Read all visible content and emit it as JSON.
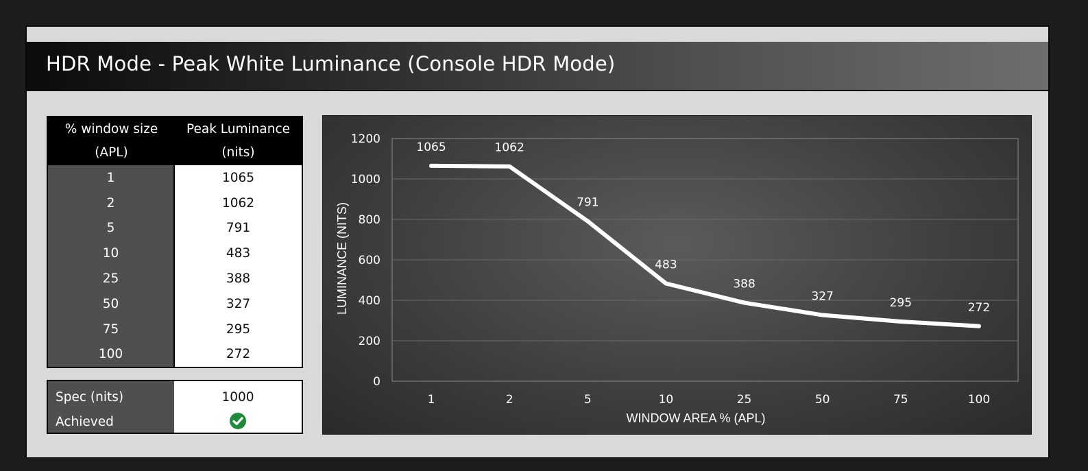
{
  "header": {
    "title": "HDR Mode - Peak White Luminance (Console HDR Mode)"
  },
  "table": {
    "col1_header_line1": "% window size",
    "col1_header_line2": "(APL)",
    "col2_header_line1": "Peak Luminance",
    "col2_header_line2": "(nits)",
    "rows": [
      {
        "window": "1",
        "luminance": "1065"
      },
      {
        "window": "2",
        "luminance": "1062"
      },
      {
        "window": "5",
        "luminance": "791"
      },
      {
        "window": "10",
        "luminance": "483"
      },
      {
        "window": "25",
        "luminance": "388"
      },
      {
        "window": "50",
        "luminance": "327"
      },
      {
        "window": "75",
        "luminance": "295"
      },
      {
        "window": "100",
        "luminance": "272"
      }
    ]
  },
  "spec": {
    "spec_label": "Spec (nits)",
    "spec_value": "1000",
    "achieved_label": "Achieved",
    "achieved_icon": "check-circle-icon",
    "achieved_color": "#1f8a3a"
  },
  "chart_data": {
    "type": "line",
    "categories": [
      "1",
      "2",
      "5",
      "10",
      "25",
      "50",
      "75",
      "100"
    ],
    "values": [
      1065,
      1062,
      791,
      483,
      388,
      327,
      295,
      272
    ],
    "data_labels": [
      "1065",
      "1062",
      "791",
      "483",
      "388",
      "327",
      "295",
      "272"
    ],
    "xlabel": "WINDOW AREA % (APL)",
    "ylabel": "LUMINANCE (NITS)",
    "ylim": [
      0,
      1200
    ],
    "yticks": [
      "0",
      "200",
      "400",
      "600",
      "800",
      "1000",
      "1200"
    ],
    "grid": true,
    "line_color": "#ffffff"
  }
}
